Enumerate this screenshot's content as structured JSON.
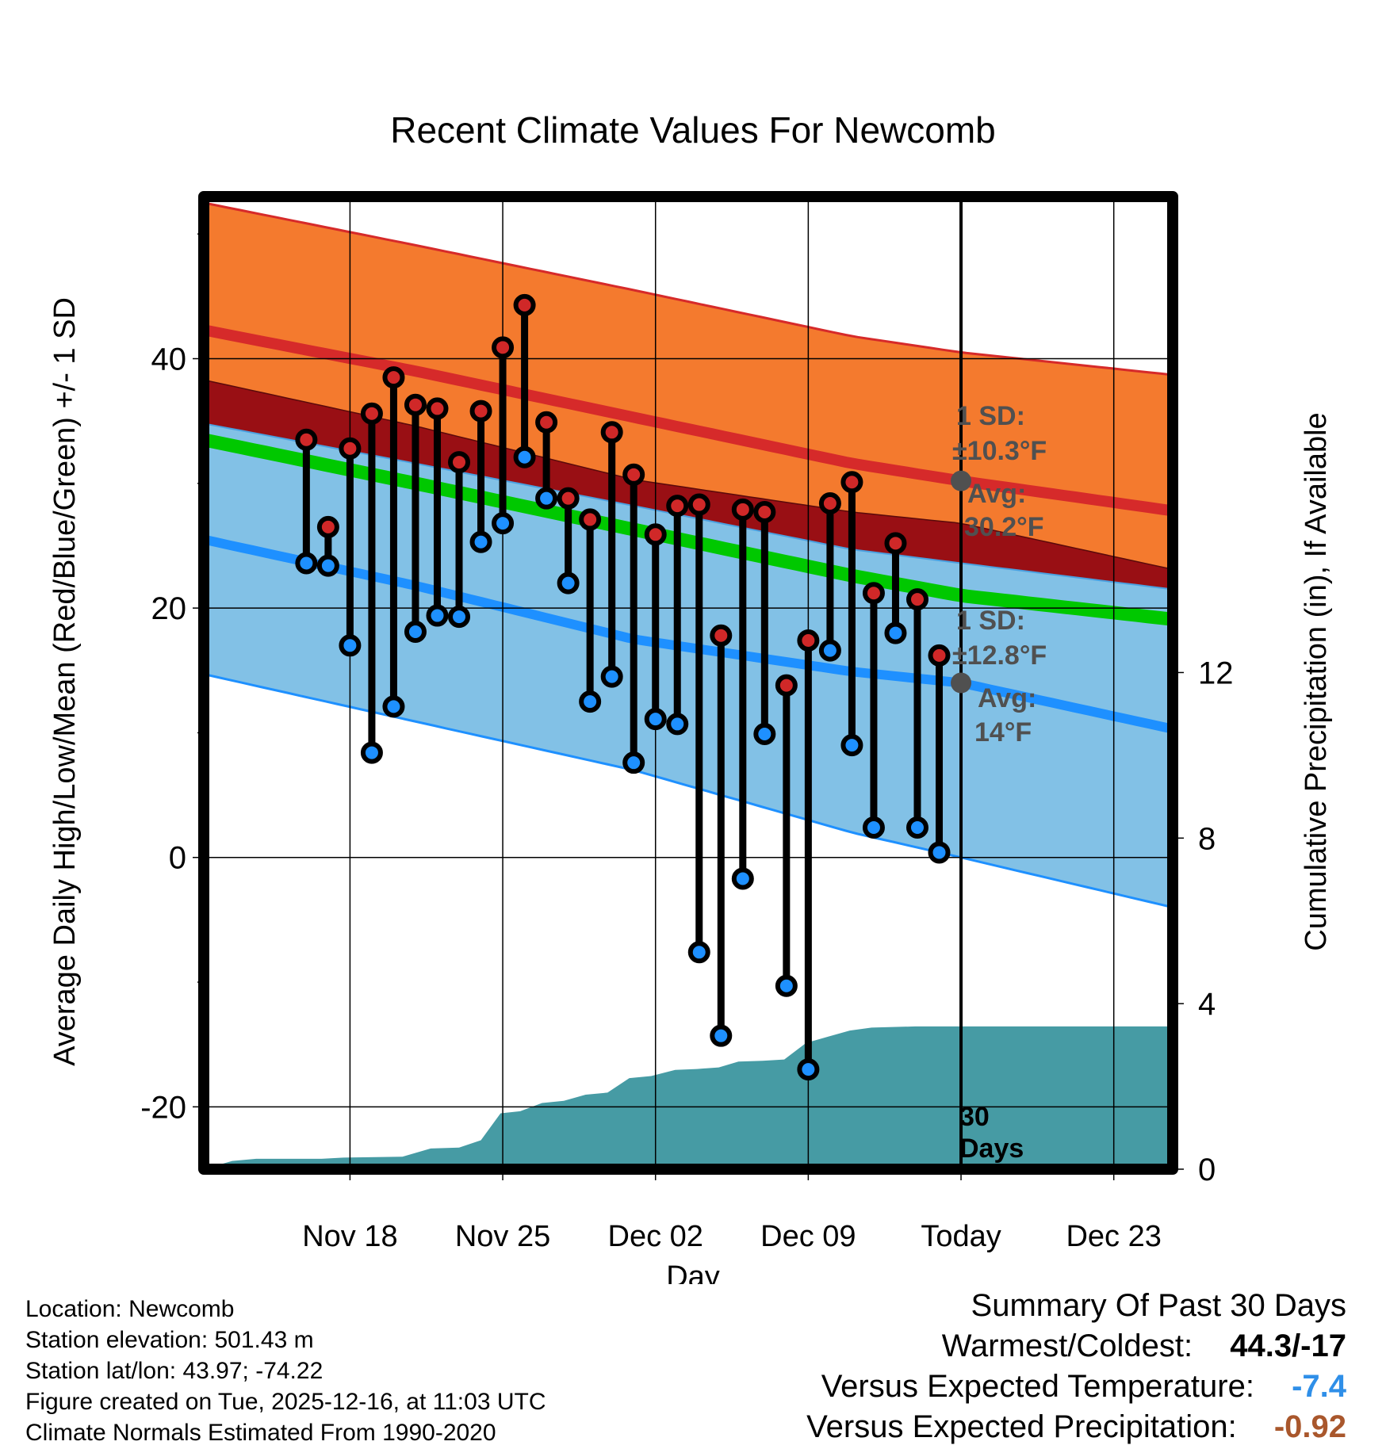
{
  "chart_data": {
    "type": "range-dot",
    "title": "Recent Climate Values For Newcomb",
    "xlabel": "Day",
    "ylabel_left": "Average Daily High/Low/Mean (Red/Blue/Green) +/- 1 SD",
    "ylabel_right": "Cumulative Precipitation (in), If Available",
    "ylim": [
      -25,
      53
    ],
    "yticks": [
      -20,
      0,
      20,
      40
    ],
    "precip_ylim": [
      0,
      23.5
    ],
    "precip_ticks": [
      0,
      4,
      8,
      12
    ],
    "x_range_days": [
      -34.7,
      9.7
    ],
    "x_ticks": [
      {
        "day": -28,
        "label": "Nov 18"
      },
      {
        "day": -21,
        "label": "Nov 25"
      },
      {
        "day": -14,
        "label": "Dec 02"
      },
      {
        "day": -7,
        "label": "Dec 09"
      },
      {
        "day": 0,
        "label": "Today"
      },
      {
        "day": 7,
        "label": "Dec 23"
      }
    ],
    "normals": {
      "x": [
        -34.7,
        -25,
        -15,
        -5,
        0,
        9.7
      ],
      "high_avg": [
        42.3,
        39.0,
        35.3,
        31.6,
        30.2,
        27.8
      ],
      "high_upper": [
        52.5,
        49.1,
        45.5,
        41.8,
        40.5,
        38.7
      ],
      "high_lower": [
        34.8,
        31.6,
        28.2,
        24.7,
        23.6,
        21.5
      ],
      "mean_avg": [
        33.5,
        30.0,
        26.3,
        22.6,
        21.0,
        19.1
      ],
      "low_avg": [
        25.5,
        21.8,
        17.5,
        14.9,
        14.0,
        10.3
      ],
      "low_lower": [
        14.7,
        10.9,
        7.0,
        2.0,
        0.0,
        -4.0
      ]
    },
    "series": [
      {
        "name": "High",
        "color": "#d02828",
        "values": [
          33.5,
          26.5,
          32.8,
          35.6,
          38.5,
          36.3,
          36.0,
          31.7,
          35.8,
          40.9,
          44.3,
          34.9,
          28.8,
          27.1,
          34.1,
          30.7,
          25.9,
          28.2,
          28.3,
          17.8,
          27.9,
          27.7,
          13.8,
          17.4,
          28.4,
          30.1,
          21.2,
          25.2,
          20.7,
          16.2
        ]
      },
      {
        "name": "Low",
        "color": "#1e90ff",
        "values": [
          23.6,
          23.4,
          17.0,
          8.4,
          12.1,
          18.1,
          19.4,
          19.3,
          25.3,
          26.8,
          32.1,
          28.8,
          22.0,
          12.5,
          14.5,
          7.6,
          11.1,
          10.7,
          -7.6,
          -14.3,
          -1.7,
          9.9,
          -10.3,
          -17.0,
          16.6,
          9.0,
          2.4,
          18.0,
          2.4,
          0.4
        ]
      }
    ],
    "obs_start_day": -30,
    "precip_cumulative": {
      "x": [
        -34.7,
        -33.4,
        -32.3,
        -29.3,
        -28.3,
        -25.6,
        -24.3,
        -23,
        -22,
        -21.1,
        -20.2,
        -19.2,
        -18.2,
        -17.2,
        -16.2,
        -15.2,
        -14.2,
        -13.1,
        -12.1,
        -11.1,
        -10.2,
        -9.1,
        -8.1,
        -7.1,
        -6.1,
        -5.1,
        -4.1,
        -2.1,
        0,
        9.7
      ],
      "y": [
        0.0,
        0.2,
        0.25,
        0.25,
        0.28,
        0.3,
        0.5,
        0.52,
        0.7,
        1.35,
        1.4,
        1.6,
        1.65,
        1.8,
        1.85,
        2.2,
        2.25,
        2.4,
        2.42,
        2.46,
        2.6,
        2.62,
        2.65,
        3.05,
        3.2,
        3.35,
        3.42,
        3.45,
        3.45,
        3.45
      ]
    },
    "annotations": {
      "high_sd": "1 SD:",
      "high_sd_value": "±10.3°F",
      "high_avg_label": "Avg:",
      "high_avg_value": "30.2°F",
      "high_avg_at_today": 30.2,
      "low_sd": "1 SD:",
      "low_sd_value": "±12.8°F",
      "low_avg_label": "Avg:",
      "low_avg_value": "14°F",
      "low_avg_at_today": 14.0,
      "period_number": "30",
      "period_unit": "Days"
    },
    "colors": {
      "high_band": "#f47a2e",
      "high_line": "#d62a2a",
      "overlap_band": "#990f14",
      "mean_line": "#00c800",
      "low_band": "#82c1e6",
      "low_line": "#1e90ff",
      "precip_fill": "#469ba4",
      "annotation": "#505050"
    }
  },
  "info": {
    "location": "Location: Newcomb",
    "elevation": "Station elevation: 501.43 m",
    "latlon": "Station lat/lon: 43.97; -74.22",
    "created": "Figure created on Tue, 2025-12-16, at 11:03 UTC",
    "normals": "Climate Normals Estimated From 1990-2020"
  },
  "summary": {
    "title": "Summary Of Past 30 Days",
    "warm_cold_label": "Warmest/Coldest:",
    "warm_cold_value": "44.3/-17",
    "temp_label": "Versus Expected Temperature:",
    "temp_value": "-7.4",
    "temp_color": "#2f8fe8",
    "precip_label": "Versus Expected Precipitation:",
    "precip_value": "-0.92",
    "precip_color": "#a9572c"
  }
}
